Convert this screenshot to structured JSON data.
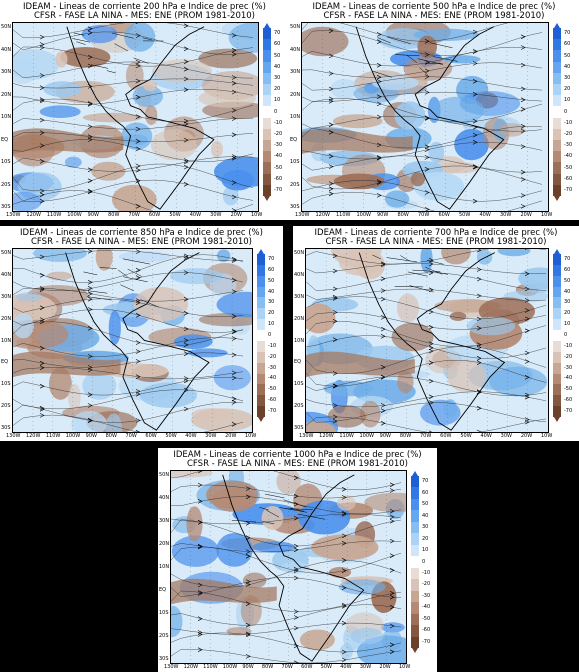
{
  "panels": [
    {
      "title1": "IDEAM - Lineas de corriente 200 hPa e Indice de prec (%)",
      "title2": "CFSR - FASE LA NINA - MES: ENE (PROM 1981-2010)"
    },
    {
      "title1": "IDEAM - Lineas de corriente 500 hPa e Indice de prec (%)",
      "title2": "CFSR - FASE LA NINA - MES: ENE (PROM 1981-2010)"
    },
    {
      "title1": "IDEAM - Lineas de corriente 850 hPa e Indice de prec (%)",
      "title2": "CFSR - FASE LA NINA - MES: ENE (PROM 1981-2010)"
    },
    {
      "title1": "IDEAM - Lineas de corriente 700 hPa e Indice de prec (%)",
      "title2": "CFSR - FASE LA NINA - MES: ENE (PROM 1981-2010)"
    },
    {
      "title1": "IDEAM - Lineas de corriente 1000 hPa e Indice de prec (%)",
      "title2": "CFSR - FASE LA NINA - MES: ENE (PROM 1981-2010)"
    }
  ],
  "lon_labels": [
    "130W",
    "120W",
    "110W",
    "100W",
    "90W",
    "80W",
    "70W",
    "60W",
    "50W",
    "40W",
    "30W",
    "20W",
    "10W"
  ],
  "lat_labels": [
    "50N",
    "40N",
    "30N",
    "20N",
    "10N",
    "EQ",
    "10S",
    "20S",
    "30S"
  ],
  "colorbar": {
    "ticks": [
      "70",
      "60",
      "50",
      "40",
      "30",
      "20",
      "10",
      "0",
      "-10",
      "-20",
      "-30",
      "-40",
      "-50",
      "-60",
      "-70"
    ],
    "colors": [
      "#1f5fd6",
      "#2f78e6",
      "#4a90ec",
      "#64a6f0",
      "#86bdf3",
      "#aad3f6",
      "#cfe6fa",
      "#ffffff",
      "#e8ddd6",
      "#d8c3b6",
      "#c7a794",
      "#b48a74",
      "#9c6f58",
      "#84573f",
      "#6b412c"
    ]
  }
}
